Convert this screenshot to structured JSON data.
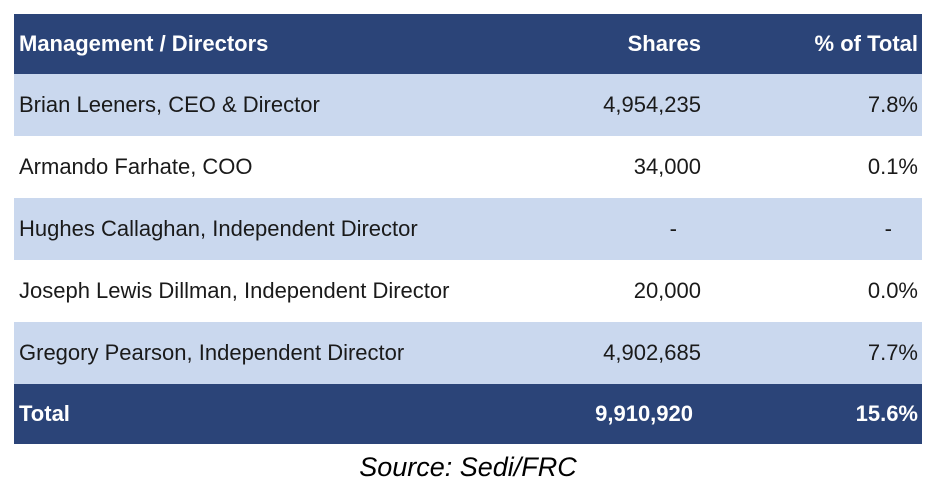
{
  "table": {
    "headers": {
      "name": "Management / Directors",
      "shares": "Shares",
      "pct": "% of Total"
    },
    "rows": [
      {
        "name": "Brian Leeners, CEO & Director",
        "shares": "4,954,235",
        "pct": "7.8%"
      },
      {
        "name": "Armando Farhate, COO",
        "shares": "34,000",
        "pct": "0.1%"
      },
      {
        "name": "Hughes Callaghan, Independent Director",
        "shares": "-",
        "pct": "-"
      },
      {
        "name": "Joseph Lewis Dillman, Independent Director",
        "shares": "20,000",
        "pct": "0.0%"
      },
      {
        "name": "Gregory Pearson, Independent Director",
        "shares": "4,902,685",
        "pct": "7.7%"
      }
    ],
    "total": {
      "name": "Total",
      "shares": "9,910,920",
      "pct": "15.6%"
    }
  },
  "source": "Source: Sedi/FRC",
  "colors": {
    "header_bg": "#2b4478",
    "shaded_row": "#cad8ee",
    "plain_row": "#ffffff"
  }
}
